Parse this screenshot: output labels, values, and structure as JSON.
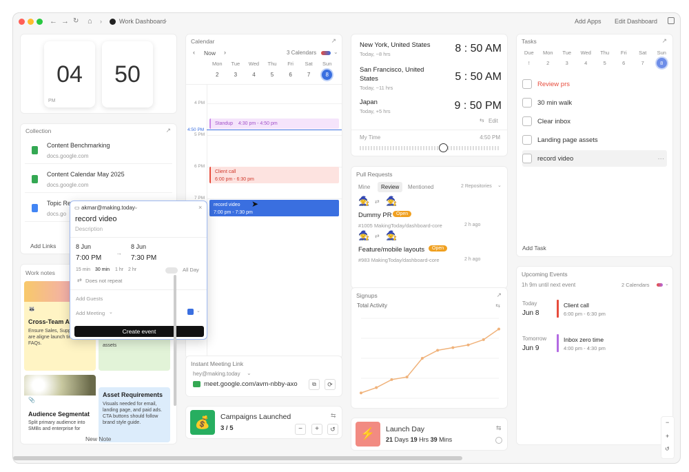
{
  "toolbar": {
    "home": "⌂",
    "title": "Work Dashboard",
    "add_apps": "Add Apps",
    "edit_dashboard": "Edit Dashboard"
  },
  "clock": {
    "hour": "04",
    "minute": "50",
    "ampm": "PM"
  },
  "collection": {
    "title": "Collection",
    "items": [
      {
        "name": "Content Benchmarking",
        "domain": "docs.google.com"
      },
      {
        "name": "Content Calendar May 2025",
        "domain": "docs.google.com"
      },
      {
        "name": "Topic Re",
        "domain": "docs.go"
      }
    ],
    "add_links": "Add Links"
  },
  "worknotes": {
    "title": "Work notes",
    "new_note": "New Note",
    "notes": [
      {
        "title": "Cross-Team Al",
        "body": "Ensure Sales, Supp Product are aligne launch timeline and FAQs."
      },
      {
        "title": "",
        "body": "assets"
      },
      {
        "title": "Audience Segmentat",
        "body": "Split primary audience into SMBs and enterprise for"
      },
      {
        "title": "Asset Requirements",
        "body": "Visuals needed for email, landing page, and paid ads. CTA buttons should follow brand style guide."
      }
    ]
  },
  "calendar": {
    "title": "Calendar",
    "now": "Now",
    "calendars": "3 Calendars",
    "days": [
      {
        "d": "Mon",
        "n": "2"
      },
      {
        "d": "Tue",
        "n": "3"
      },
      {
        "d": "Wed",
        "n": "4"
      },
      {
        "d": "Thu",
        "n": "5"
      },
      {
        "d": "Fri",
        "n": "6"
      },
      {
        "d": "Sat",
        "n": "7"
      },
      {
        "d": "Sun",
        "n": "8"
      }
    ],
    "hours": [
      "4 PM",
      "5 PM",
      "6 PM",
      "7 PM"
    ],
    "now_time": "4:50 PM",
    "events": [
      {
        "title": "Standup",
        "time": "4:30 pm - 4:50 pm"
      },
      {
        "title": "Client call",
        "time": "6:00 pm - 6:30 pm"
      },
      {
        "title": "record video",
        "time": "7:00 pm - 7:30 pm"
      }
    ]
  },
  "popup": {
    "account": "akmar@making.today",
    "title": "record video",
    "description": "Description",
    "start_date": "8 Jun",
    "start_time": "7:00 PM",
    "end_date": "8 Jun",
    "end_time": "7:30 PM",
    "durations": [
      "15 min",
      "30 min",
      "1 hr",
      "2 hr"
    ],
    "all_day": "All Day",
    "repeat": "Does not repeat",
    "add_guests": "Add Guests",
    "add_meeting": "Add Meeting",
    "create": "Create event"
  },
  "meeting": {
    "title": "Instant Meeting Link",
    "account": "hey@making.today",
    "link": "meet.google.com/avm-nbby-axo"
  },
  "campaigns": {
    "title": "Campaigns Launched",
    "value": "3 / 5",
    "emoji": "💰"
  },
  "worldclock": {
    "cities": [
      {
        "name": "New York, United States",
        "offset": "Today, −8 hrs",
        "time": "8 : 50 AM"
      },
      {
        "name": "San Francisco, United States",
        "offset": "Today, −11 hrs",
        "time": "5 : 50 AM"
      },
      {
        "name": "Japan",
        "offset": "Today, +5 hrs",
        "time": "9 : 50 PM"
      }
    ],
    "edit": "Edit",
    "my_time": "My Time",
    "my_time_value": "4:50 PM",
    "slider_fraction": 0.6
  },
  "pr": {
    "title": "Pull Requests",
    "tabs": [
      "Mine",
      "Review",
      "Mentioned"
    ],
    "repos": "2 Repositories",
    "items": [
      {
        "title": "Dummy PR",
        "status": "Open",
        "ref": "#1005 MakingToday/dashboard-core",
        "age": "2 h ago"
      },
      {
        "title": "Feature/mobile layouts",
        "status": "Open",
        "ref": "#983 MakingToday/dashboard-core",
        "age": "2 h ago"
      }
    ]
  },
  "signups": {
    "title": "Signups",
    "subtitle": "Total Activity"
  },
  "chart_data": {
    "type": "line",
    "title": "Signups",
    "subtitle": "Total Activity",
    "x": [
      1,
      2,
      3,
      4,
      5,
      6,
      7,
      8,
      9,
      10
    ],
    "values": [
      2,
      4,
      7,
      8,
      15,
      18,
      19,
      20,
      22,
      26
    ],
    "ylim": [
      0,
      30
    ],
    "color": "#f0b27a"
  },
  "launch": {
    "title": "Launch Day",
    "days": "21",
    "hrs": "19",
    "mins": "39",
    "days_label": "Days",
    "hrs_label": "Hrs",
    "mins_label": "Mins",
    "emoji": "⚡"
  },
  "tasks": {
    "title": "Tasks",
    "days": [
      {
        "d": "Due",
        "n": "!"
      },
      {
        "d": "Mon",
        "n": "2"
      },
      {
        "d": "Tue",
        "n": "3"
      },
      {
        "d": "Wed",
        "n": "4"
      },
      {
        "d": "Thu",
        "n": "5"
      },
      {
        "d": "Fri",
        "n": "6"
      },
      {
        "d": "Sat",
        "n": "7"
      },
      {
        "d": "Sun",
        "n": "8"
      }
    ],
    "items": [
      "Review prs",
      "30 min walk",
      "Clear inbox",
      "Landing page assets",
      "record video"
    ],
    "add_task": "Add Task"
  },
  "upcoming": {
    "title": "Upcoming Events",
    "until": "1h 9m until next event",
    "calendars": "2 Calendars",
    "groups": [
      {
        "label": "Today",
        "date": "Jun 8",
        "event": "Client call",
        "time": "6:00 pm - 6:30 pm",
        "color": "#e74c3c"
      },
      {
        "label": "Tomorrow",
        "date": "Jun 9",
        "event": "Inbox zero time",
        "time": "4:00 pm - 4:30 pm",
        "color": "#b36ae2"
      }
    ]
  },
  "zoom": {
    "minus": "−",
    "plus": "+",
    "reset": "↺"
  }
}
